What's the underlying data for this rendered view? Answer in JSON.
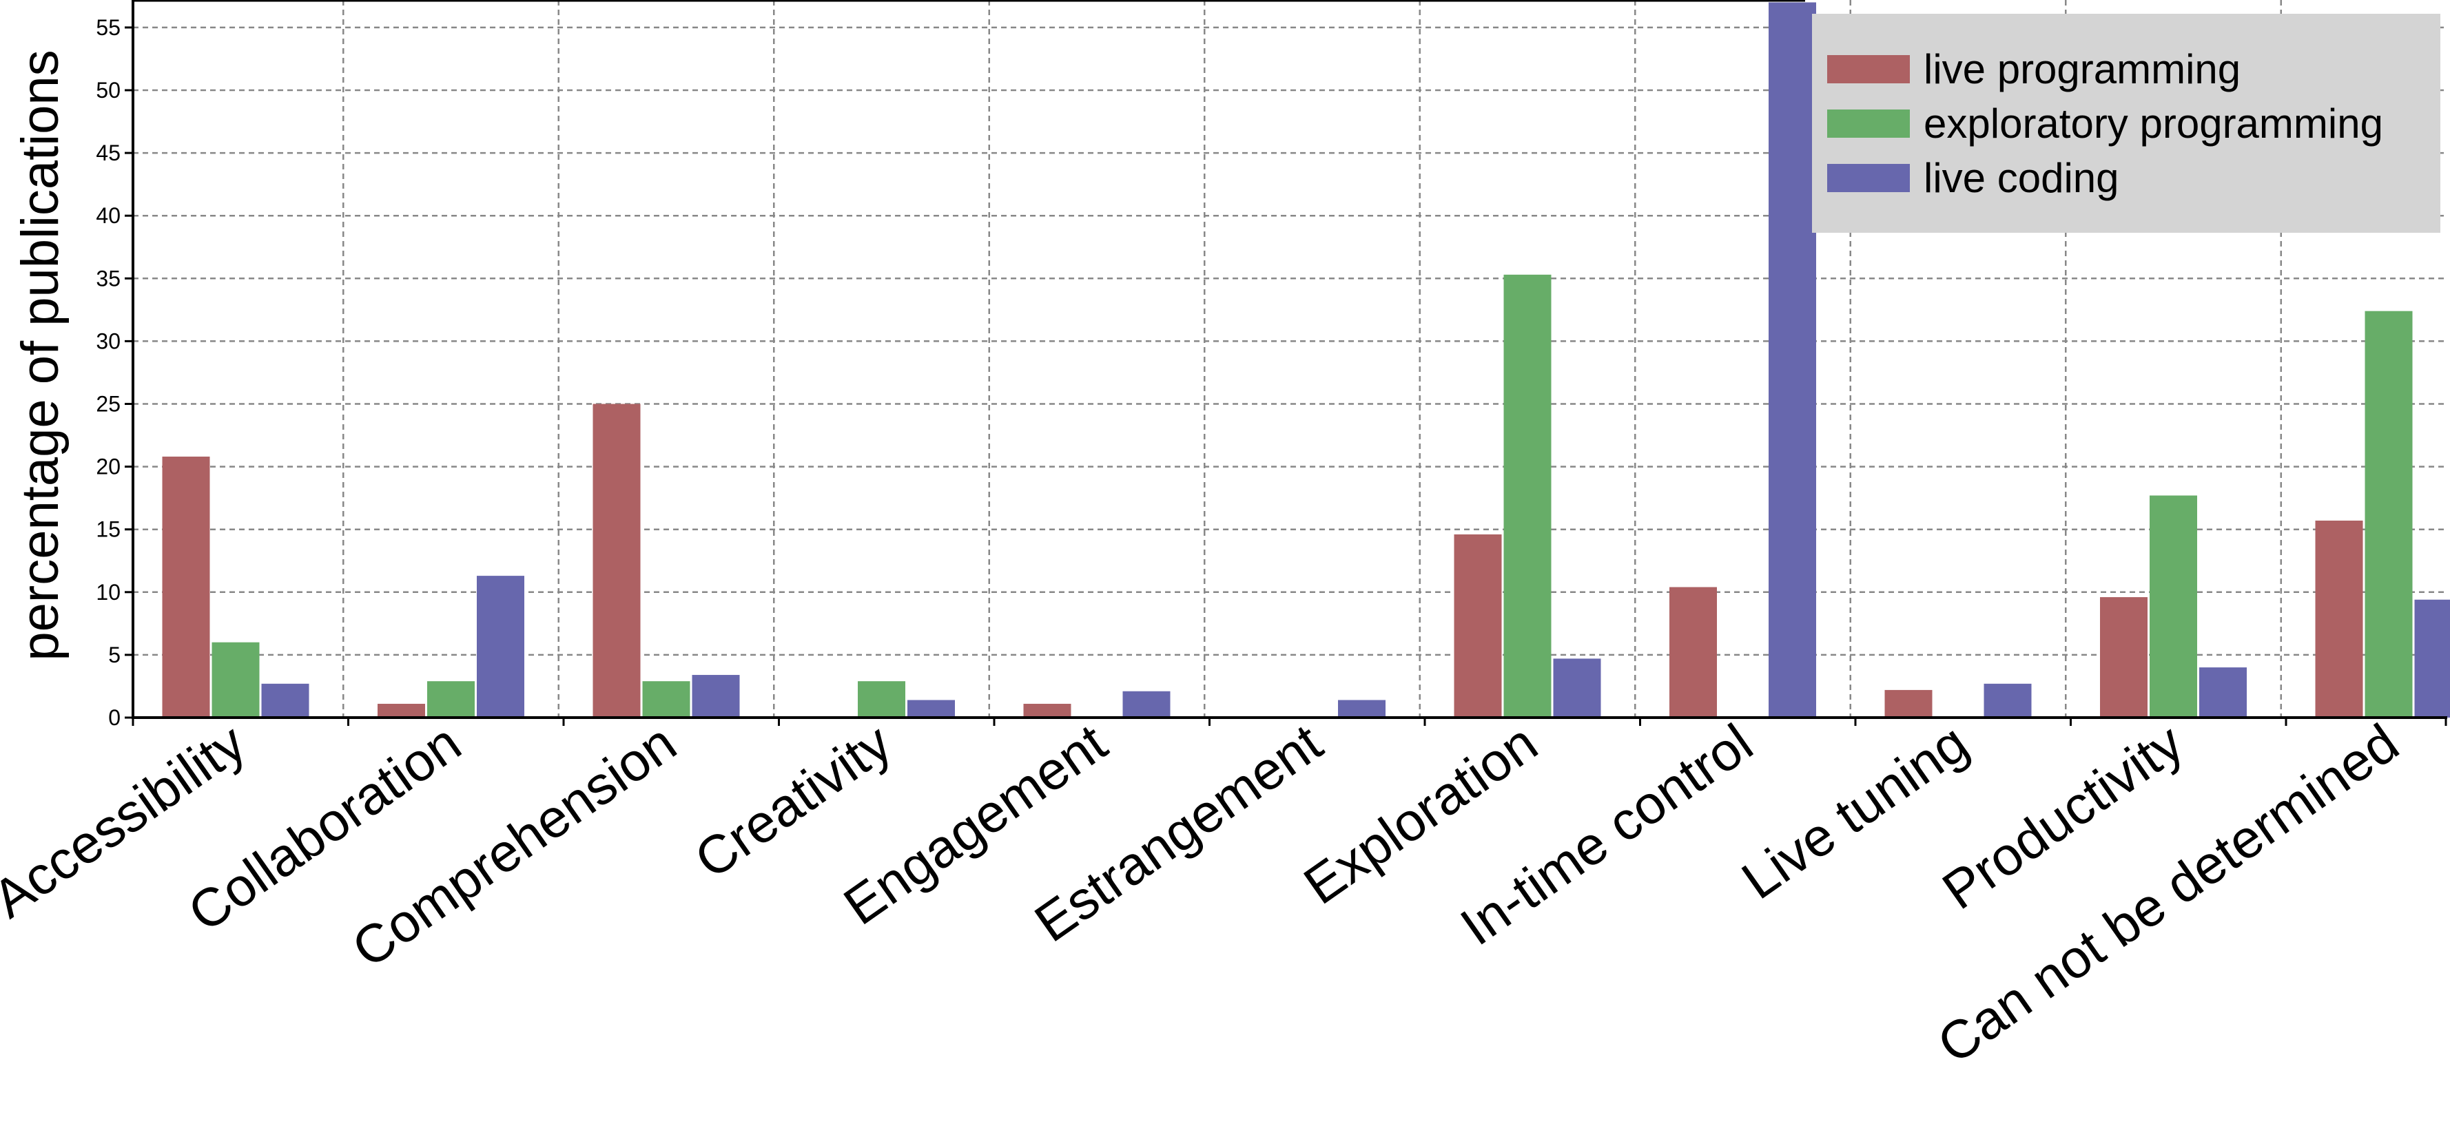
{
  "chart_data": {
    "type": "bar",
    "title": "",
    "xlabel": "",
    "ylabel": "percentage of publications",
    "ylim": [
      0,
      57
    ],
    "yticks": [
      0,
      5,
      10,
      15,
      20,
      25,
      30,
      35,
      40,
      45,
      50,
      55
    ],
    "grid": true,
    "legend_position": "top-right",
    "categories": [
      "Accessibility",
      "Collaboration",
      "Comprehension",
      "Creativity",
      "Engagement",
      "Estrangement",
      "Exploration",
      "In-time control",
      "Live tuning",
      "Productivity",
      "Can not be determined"
    ],
    "series": [
      {
        "name": "live programming",
        "color": "#ad6163",
        "values": [
          20.8,
          1.1,
          25.0,
          0,
          1.1,
          0,
          14.6,
          10.4,
          2.2,
          9.6,
          15.7
        ]
      },
      {
        "name": "exploratory programming",
        "color": "#67ad68",
        "values": [
          6.0,
          2.9,
          2.9,
          2.9,
          0,
          0,
          35.3,
          0,
          0,
          17.7,
          32.4
        ]
      },
      {
        "name": "live coding",
        "color": "#6767ad",
        "values": [
          2.7,
          11.3,
          3.4,
          1.4,
          2.1,
          1.4,
          4.7,
          57.0,
          2.7,
          4.0,
          9.4
        ]
      }
    ]
  }
}
